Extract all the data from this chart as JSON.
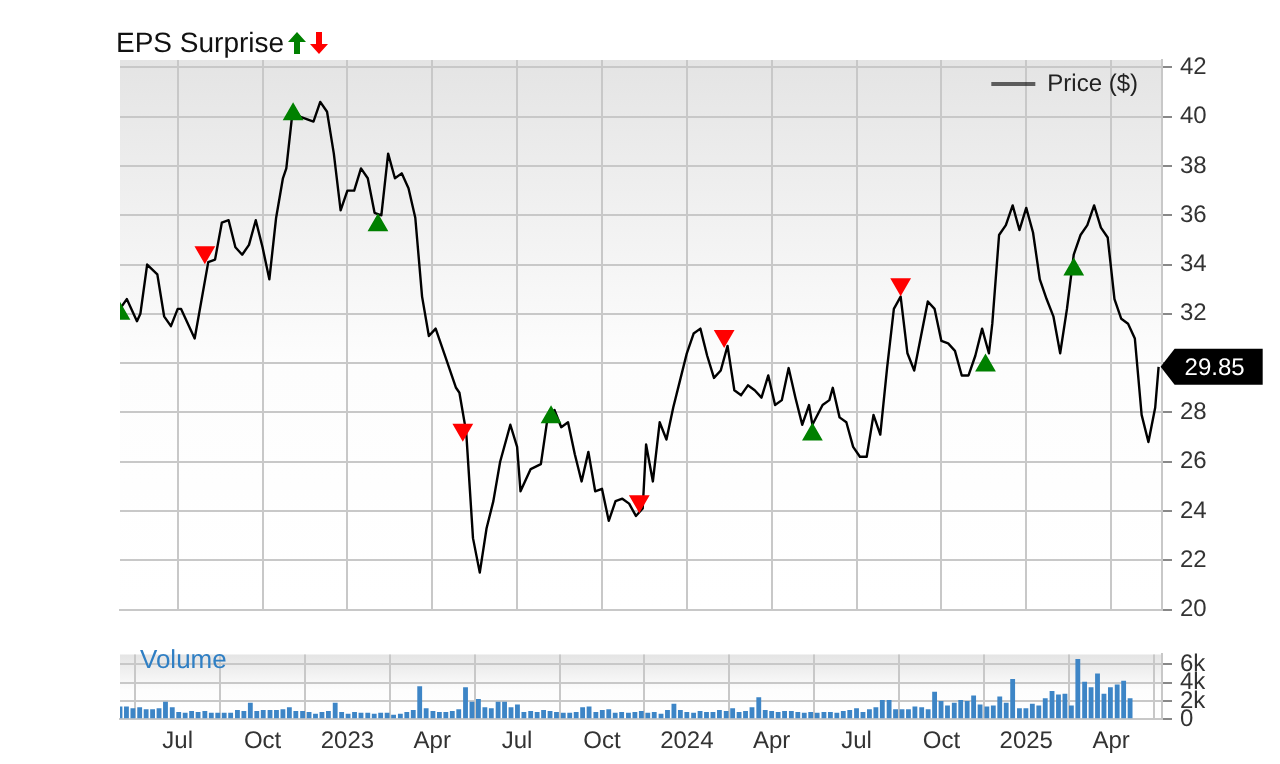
{
  "chart_data": [
    {
      "type": "line",
      "title": "EPS Surprise",
      "xlim": [
        2022.33,
        2025.4
      ],
      "ylim": [
        20,
        42.3
      ],
      "grid": true,
      "legend": "top right",
      "tick_labels": "y",
      "xticks": [
        {
          "value": 2022.5,
          "label": null
        },
        {
          "value": 2022.75,
          "label": null
        },
        {
          "value": 2023,
          "label": null
        },
        {
          "value": 2023.25,
          "label": null
        },
        {
          "value": 2023.5,
          "label": null
        },
        {
          "value": 2023.75,
          "label": null
        },
        {
          "value": 2024,
          "label": null
        },
        {
          "value": 2024.25,
          "label": null
        },
        {
          "value": 2024.5,
          "label": null
        },
        {
          "value": 2024.75,
          "label": null
        },
        {
          "value": 2025,
          "label": null
        },
        {
          "value": 2025.25,
          "label": null
        }
      ],
      "yticks": [
        20,
        22,
        24,
        26,
        28,
        {
          "value": 30,
          "label": null
        },
        32,
        34,
        36,
        38,
        40,
        42
      ],
      "annotations": [
        {
          "text": "29.85",
          "x": 2025.39,
          "y": 29.85
        }
      ],
      "series": [
        {
          "name": "Price ($)",
          "color": "#000000",
          "marker": "none",
          "x": [
            2022.33,
            2022.35,
            2022.38,
            2022.39,
            2022.41,
            2022.44,
            2022.46,
            2022.48,
            2022.5,
            2022.51,
            2022.55,
            2022.59,
            2022.61,
            2022.63,
            2022.65,
            2022.67,
            2022.69,
            2022.71,
            2022.73,
            2022.75,
            2022.77,
            2022.79,
            2022.81,
            2022.82,
            2022.84,
            2022.86,
            2022.9,
            2022.92,
            2022.94,
            2022.96,
            2022.98,
            2023.0,
            2023.02,
            2023.04,
            2023.06,
            2023.08,
            2023.1,
            2023.12,
            2023.14,
            2023.16,
            2023.18,
            2023.2,
            2023.22,
            2023.24,
            2023.26,
            2023.29,
            2023.32,
            2023.33,
            2023.35,
            2023.37,
            2023.39,
            2023.41,
            2023.43,
            2023.45,
            2023.48,
            2023.5,
            2023.51,
            2023.54,
            2023.57,
            2023.59,
            2023.61,
            2023.63,
            2023.65,
            2023.67,
            2023.69,
            2023.71,
            2023.73,
            2023.75,
            2023.77,
            2023.79,
            2023.81,
            2023.83,
            2023.85,
            2023.87,
            2023.88,
            2023.9,
            2023.92,
            2023.94,
            2023.96,
            2023.98,
            2024.0,
            2024.02,
            2024.04,
            2024.06,
            2024.08,
            2024.1,
            2024.12,
            2024.14,
            2024.16,
            2024.18,
            2024.2,
            2024.22,
            2024.24,
            2024.26,
            2024.28,
            2024.3,
            2024.32,
            2024.34,
            2024.36,
            2024.37,
            2024.4,
            2024.42,
            2024.43,
            2024.45,
            2024.47,
            2024.49,
            2024.51,
            2024.53,
            2024.55,
            2024.57,
            2024.59,
            2024.61,
            2024.63,
            2024.65,
            2024.67,
            2024.69,
            2024.71,
            2024.73,
            2024.75,
            2024.77,
            2024.79,
            2024.81,
            2024.83,
            2024.85,
            2024.87,
            2024.89,
            2024.9,
            2024.92,
            2024.94,
            2024.96,
            2024.98,
            2025.0,
            2025.02,
            2025.04,
            2025.06,
            2025.08,
            2025.1,
            2025.12,
            2025.14,
            2025.16,
            2025.18,
            2025.2,
            2025.22,
            2025.24,
            2025.26,
            2025.28,
            2025.3,
            2025.32,
            2025.34,
            2025.36,
            2025.38,
            2025.39
          ],
          "values": [
            32.2,
            32.6,
            31.7,
            32.0,
            34.0,
            33.6,
            31.9,
            31.5,
            32.2,
            32.2,
            31.0,
            34.1,
            34.2,
            35.7,
            35.8,
            34.7,
            34.4,
            34.8,
            35.8,
            34.7,
            33.4,
            35.9,
            37.5,
            37.9,
            40.4,
            40.0,
            39.8,
            40.6,
            40.2,
            38.5,
            36.2,
            37.0,
            37.0,
            37.9,
            37.5,
            36.1,
            36.0,
            38.5,
            37.5,
            37.7,
            37.1,
            35.9,
            32.7,
            31.1,
            31.4,
            30.2,
            29.0,
            28.8,
            27.2,
            22.9,
            21.5,
            23.3,
            24.4,
            26.0,
            27.5,
            26.6,
            24.8,
            25.7,
            25.9,
            27.8,
            28.1,
            27.4,
            27.6,
            26.3,
            25.2,
            26.4,
            24.8,
            24.9,
            23.6,
            24.4,
            24.5,
            24.3,
            23.8,
            24.1,
            26.7,
            25.2,
            27.6,
            26.9,
            28.2,
            29.3,
            30.4,
            31.2,
            31.4,
            30.3,
            29.4,
            29.7,
            30.7,
            28.9,
            28.7,
            29.1,
            28.9,
            28.6,
            29.5,
            28.3,
            28.5,
            29.8,
            28.6,
            27.5,
            28.3,
            27.5,
            28.3,
            28.5,
            29.0,
            27.8,
            27.6,
            26.6,
            26.2,
            26.2,
            27.9,
            27.1,
            29.8,
            32.2,
            32.7,
            30.4,
            29.7,
            31.1,
            32.5,
            32.2,
            30.9,
            30.8,
            30.5,
            29.5,
            29.5,
            30.3,
            31.4,
            30.4,
            31.6,
            35.2,
            35.6,
            36.4,
            35.4,
            36.3,
            35.3,
            33.4,
            32.6,
            31.9,
            30.4,
            32.2,
            34.4,
            35.2,
            35.6,
            36.4,
            35.5,
            35.1,
            32.6,
            31.8,
            31.6,
            31.0,
            27.9,
            26.8,
            28.2,
            29.85
          ]
        },
        {
          "type": "scatter",
          "color": "#008000",
          "marker": "triangle",
          "x": [
            2022.33,
            2022.84,
            2023.09,
            2023.6,
            2024.37,
            2024.88,
            2025.14
          ],
          "values": [
            32.0,
            40.1,
            35.6,
            27.8,
            27.1,
            29.9,
            33.8
          ]
        },
        {
          "type": "scatter",
          "color": "#ff0000",
          "marker": "triangle",
          "x": [
            2022.58,
            2023.34,
            2023.86,
            2024.11,
            2024.63
          ],
          "values": [
            34.5,
            27.3,
            24.4,
            31.1,
            33.2
          ]
        }
      ]
    },
    {
      "type": "bar",
      "title": "Volume",
      "color": "#3d85c6",
      "xlim": [
        2022.33,
        2025.4
      ],
      "ylim": [
        0,
        7100
      ],
      "grid": true,
      "xticks": [
        {
          "value": 2022.5,
          "label": "Jul"
        },
        {
          "value": 2022.75,
          "label": "Oct"
        },
        2023,
        {
          "value": 2023.25,
          "label": "Apr"
        },
        {
          "value": 2023.5,
          "label": "Jul"
        },
        {
          "value": 2023.75,
          "label": "Oct"
        },
        2024,
        {
          "value": 2024.25,
          "label": "Apr"
        },
        {
          "value": 2024.5,
          "label": "Jul"
        },
        {
          "value": 2024.75,
          "label": "Oct"
        },
        2025,
        {
          "value": 2025.25,
          "label": "Apr"
        }
      ],
      "yticks": [
        0,
        {
          "value": 2000,
          "label": "2k"
        },
        {
          "value": 4000,
          "label": "4k"
        },
        {
          "value": 6000,
          "label": "6k"
        }
      ],
      "x": [
        2022.33,
        2022.349,
        2022.368,
        2022.388,
        2022.407,
        2022.426,
        2022.445,
        2022.464,
        2022.484,
        2022.503,
        2022.522,
        2022.541,
        2022.56,
        2022.58,
        2022.599,
        2022.618,
        2022.637,
        2022.656,
        2022.676,
        2022.695,
        2022.714,
        2022.733,
        2022.752,
        2022.772,
        2022.791,
        2022.81,
        2022.829,
        2022.848,
        2022.868,
        2022.887,
        2022.906,
        2022.925,
        2022.944,
        2022.964,
        2022.983,
        2023.002,
        2023.021,
        2023.04,
        2023.06,
        2023.079,
        2023.098,
        2023.117,
        2023.136,
        2023.156,
        2023.175,
        2023.194,
        2023.213,
        2023.232,
        2023.252,
        2023.271,
        2023.29,
        2023.309,
        2023.328,
        2023.348,
        2023.367,
        2023.386,
        2023.405,
        2023.424,
        2023.444,
        2023.463,
        2023.482,
        2023.501,
        2023.52,
        2023.54,
        2023.559,
        2023.578,
        2023.597,
        2023.616,
        2023.636,
        2023.655,
        2023.674,
        2023.693,
        2023.712,
        2023.732,
        2023.751,
        2023.77,
        2023.789,
        2023.808,
        2023.828,
        2023.847,
        2023.866,
        2023.885,
        2023.904,
        2023.924,
        2023.943,
        2023.962,
        2023.981,
        2024.0,
        2024.02,
        2024.039,
        2024.058,
        2024.077,
        2024.096,
        2024.116,
        2024.135,
        2024.154,
        2024.173,
        2024.192,
        2024.212,
        2024.231,
        2024.25,
        2024.269,
        2024.288,
        2024.308,
        2024.327,
        2024.346,
        2024.365,
        2024.384,
        2024.404,
        2024.423,
        2024.442,
        2024.461,
        2024.48,
        2024.5,
        2024.519,
        2024.538,
        2024.557,
        2024.576,
        2024.596,
        2024.615,
        2024.634,
        2024.653,
        2024.672,
        2024.692,
        2024.711,
        2024.73,
        2024.749,
        2024.768,
        2024.788,
        2024.807,
        2024.826,
        2024.845,
        2024.864,
        2024.884,
        2024.903,
        2024.922,
        2024.941,
        2024.96,
        2024.98,
        2024.999,
        2025.018,
        2025.037,
        2025.056,
        2025.076,
        2025.095,
        2025.114,
        2025.133,
        2025.152,
        2025.172,
        2025.191,
        2025.21,
        2025.229,
        2025.248,
        2025.268,
        2025.287,
        2025.306
      ],
      "values": [
        1400,
        1400,
        1200,
        1300,
        1100,
        1100,
        1200,
        1900,
        1300,
        800,
        700,
        900,
        800,
        900,
        700,
        700,
        700,
        700,
        1000,
        900,
        1800,
        900,
        1000,
        1000,
        1000,
        1100,
        1300,
        900,
        900,
        800,
        600,
        800,
        900,
        1800,
        800,
        600,
        800,
        700,
        700,
        600,
        700,
        700,
        500,
        600,
        800,
        1000,
        3600,
        1200,
        900,
        800,
        800,
        900,
        1100,
        3500,
        1900,
        2200,
        1300,
        1200,
        1900,
        1900,
        1300,
        1600,
        800,
        900,
        800,
        1000,
        900,
        800,
        700,
        700,
        800,
        1300,
        1400,
        800,
        1000,
        1100,
        700,
        800,
        700,
        800,
        900,
        700,
        800,
        600,
        1000,
        1700,
        1000,
        800,
        700,
        900,
        800,
        800,
        1000,
        900,
        1200,
        800,
        900,
        1300,
        2400,
        1000,
        900,
        800,
        900,
        900,
        800,
        700,
        800,
        700,
        800,
        800,
        700,
        900,
        1000,
        1200,
        800,
        1100,
        1300,
        2100,
        2100,
        1100,
        1100,
        1100,
        1400,
        1300,
        1100,
        3000,
        2000,
        1500,
        1800,
        2100,
        2000,
        2600,
        1600,
        1400,
        1500,
        2500,
        1800,
        4400,
        1200,
        1200,
        1700,
        1500,
        2300,
        3100,
        2700,
        2800,
        1500,
        6600,
        4100,
        3500,
        5000,
        2800,
        3500,
        3800,
        4200,
        2300
      ]
    }
  ]
}
